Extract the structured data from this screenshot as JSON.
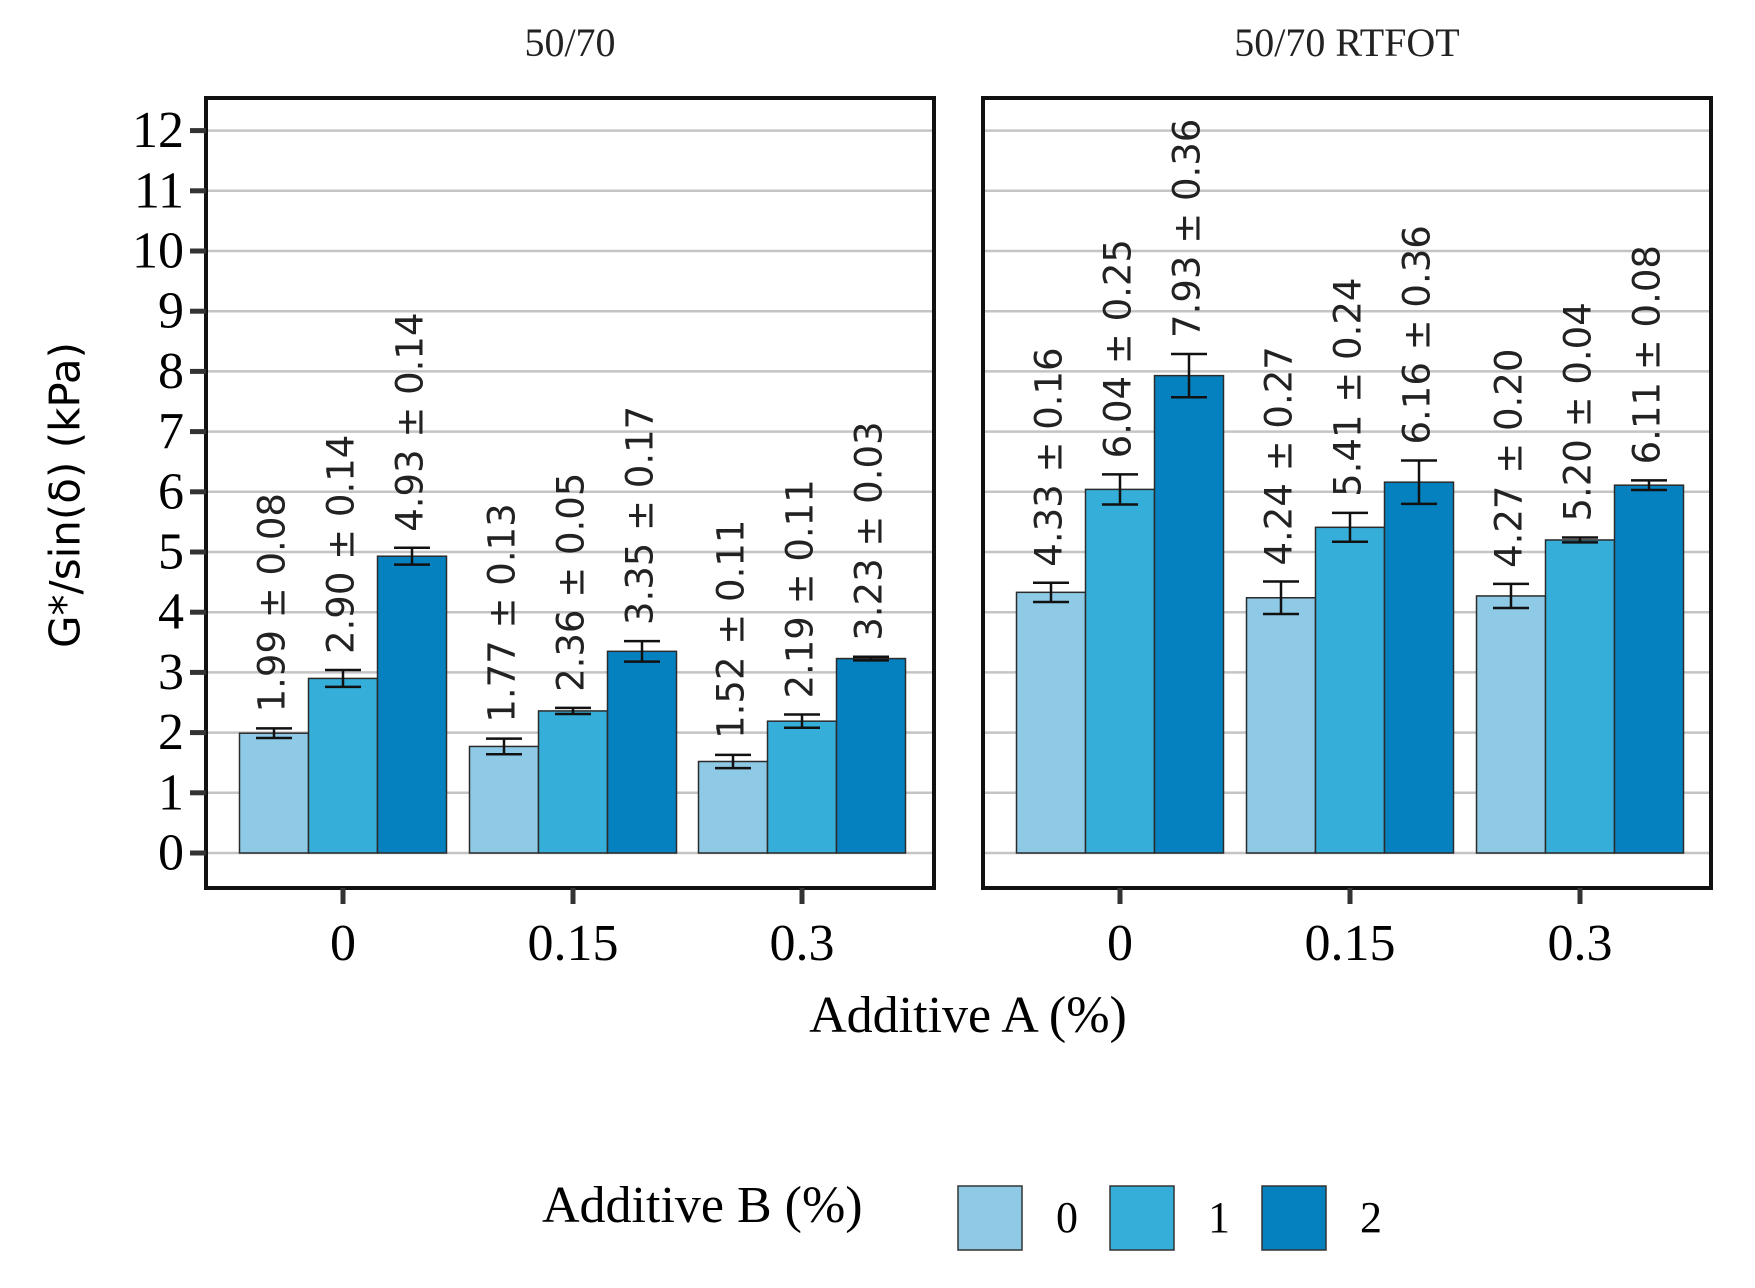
{
  "chart_data": {
    "type": "bar",
    "ylabel": "G*/sin(δ) (kPa)",
    "xlabel": "Additive A (%)",
    "ylim": [
      0,
      12.5
    ],
    "yticks": [
      0,
      1,
      2,
      3,
      4,
      5,
      6,
      7,
      8,
      9,
      10,
      11,
      12
    ],
    "grid": true,
    "categories": [
      "0",
      "0.15",
      "0.3"
    ],
    "legend": {
      "title": "Additive B (%)",
      "position": "bottom",
      "entries": [
        "0",
        "1",
        "2"
      ]
    },
    "colors": [
      "#8ecae6",
      "#35afd9",
      "#0581c0"
    ],
    "panels": [
      {
        "title": "50/70",
        "series": [
          {
            "name": "0",
            "values": [
              1.99,
              1.77,
              1.52
            ],
            "errors": [
              0.08,
              0.13,
              0.11
            ],
            "labels": [
              "1.99 ± 0.08",
              "1.77 ± 0.13",
              "1.52 ± 0.11"
            ]
          },
          {
            "name": "1",
            "values": [
              2.9,
              2.36,
              2.19
            ],
            "errors": [
              0.14,
              0.05,
              0.11
            ],
            "labels": [
              "2.90 ± 0.14",
              "2.36 ± 0.05",
              "2.19 ± 0.11"
            ]
          },
          {
            "name": "2",
            "values": [
              4.93,
              3.35,
              3.23
            ],
            "errors": [
              0.14,
              0.17,
              0.03
            ],
            "labels": [
              "4.93 ± 0.14",
              "3.35 ± 0.17",
              "3.23 ± 0.03"
            ]
          }
        ]
      },
      {
        "title": "50/70 RTFOT",
        "series": [
          {
            "name": "0",
            "values": [
              4.33,
              4.24,
              4.27
            ],
            "errors": [
              0.16,
              0.27,
              0.2
            ],
            "labels": [
              "4.33 ± 0.16",
              "4.24 ± 0.27",
              "4.27 ± 0.20"
            ]
          },
          {
            "name": "1",
            "values": [
              6.04,
              5.41,
              5.2
            ],
            "errors": [
              0.25,
              0.24,
              0.04
            ],
            "labels": [
              "6.04 ± 0.25",
              "5.41 ± 0.24",
              "5.20 ± 0.04"
            ]
          },
          {
            "name": "2",
            "values": [
              7.93,
              6.16,
              6.11
            ],
            "errors": [
              0.36,
              0.36,
              0.08
            ],
            "labels": [
              "7.93 ± 0.36",
              "6.16 ± 0.36",
              "6.11 ± 0.08"
            ]
          }
        ]
      }
    ]
  }
}
